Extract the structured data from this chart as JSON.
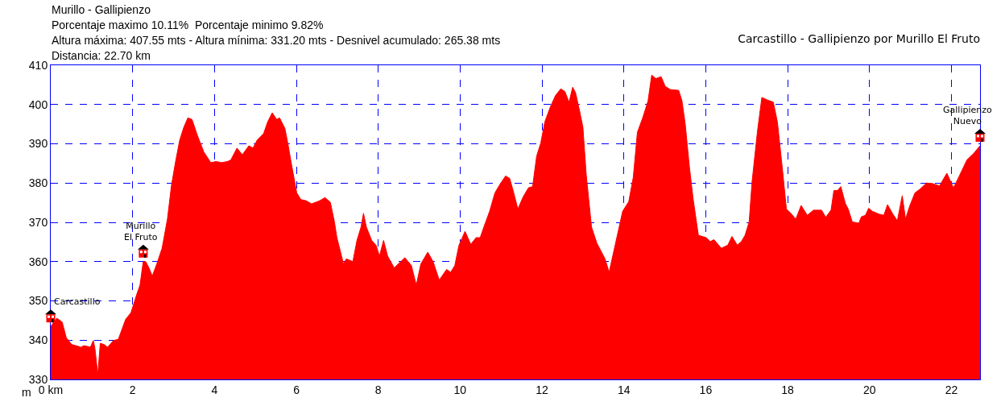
{
  "chart_data": {
    "type": "area",
    "title": "Carcastillo - Gallipienzo por Murillo El Fruto",
    "subtitle": "Murillo - Gallipienzo",
    "ylabel": "m",
    "annotations": [
      "Porcentaje maximo 10.11%  Porcentaje minimo 9.82%",
      "Altura máxima: 407.55 mts - Altura mínima: 331.20 mts - Desnivel acumulado: 265.38 mts",
      "Distancia: 22.70 km",
      {
        "text": "Carcastillo",
        "x": 0,
        "y": 343.5
      },
      {
        "text": "Murillo\nEl Fruto",
        "x": 2.26,
        "y": 360.0
      },
      {
        "text": "Gallipienzo\nNuevo",
        "x": 22.7,
        "y": 389.5
      }
    ],
    "x": [
      0,
      0.15,
      0.28,
      0.38,
      0.51,
      0.74,
      0.81,
      0.97,
      1.04,
      1.08,
      1.15,
      1.21,
      1.3,
      1.39,
      1.53,
      1.65,
      1.83,
      1.96,
      2.09,
      2.18,
      2.26,
      2.32,
      2.4,
      2.48,
      2.59,
      2.72,
      2.85,
      2.95,
      3.05,
      3.15,
      3.25,
      3.35,
      3.45,
      3.58,
      3.74,
      3.91,
      4.04,
      4.17,
      4.32,
      4.4,
      4.55,
      4.68,
      4.84,
      4.94,
      5.04,
      5.2,
      5.3,
      5.41,
      5.52,
      5.59,
      5.72,
      5.79,
      5.88,
      6.01,
      6.11,
      6.24,
      6.37,
      6.57,
      6.7,
      6.83,
      6.93,
      6.99,
      7.09,
      7.15,
      7.22,
      7.38,
      7.48,
      7.58,
      7.64,
      7.71,
      7.84,
      7.95,
      8.03,
      8.13,
      8.23,
      8.39,
      8.55,
      8.65,
      8.81,
      8.93,
      9.04,
      9.21,
      9.34,
      9.49,
      9.67,
      9.77,
      9.87,
      9.97,
      10.12,
      10.26,
      10.39,
      10.49,
      10.59,
      10.72,
      10.85,
      10.98,
      11.11,
      11.21,
      11.31,
      11.41,
      11.54,
      11.67,
      11.77,
      11.87,
      11.97,
      12.07,
      12.2,
      12.33,
      12.46,
      12.56,
      12.66,
      12.75,
      12.82,
      12.92,
      13.0,
      13.08,
      13.21,
      13.34,
      13.54,
      13.64,
      13.74,
      13.87,
      13.97,
      14.12,
      14.23,
      14.33,
      14.46,
      14.59,
      14.68,
      14.78,
      14.91,
      15.01,
      15.14,
      15.34,
      15.42,
      15.5,
      15.6,
      15.69,
      15.82,
      16.01,
      16.11,
      16.2,
      16.38,
      16.54,
      16.64,
      16.77,
      16.87,
      16.96,
      17.06,
      17.13,
      17.26,
      17.37,
      17.52,
      17.65,
      17.75,
      17.88,
      17.97,
      18.07,
      18.2,
      18.33,
      18.48,
      18.63,
      18.83,
      18.93,
      19.06,
      19.13,
      19.22,
      19.3,
      19.41,
      19.48,
      19.58,
      19.74,
      19.8,
      19.9,
      19.98,
      20.07,
      20.23,
      20.35,
      20.44,
      20.57,
      20.68,
      20.8,
      20.88,
      20.98,
      21.11,
      21.24,
      21.39,
      21.53,
      21.71,
      21.89,
      22.05,
      22.18,
      22.38,
      22.54,
      22.7
    ],
    "series": [
      {
        "color": "#ff0000",
        "values": [
          343.5,
          345.6,
          344.6,
          340.6,
          338.9,
          338.2,
          338.6,
          338.2,
          339.9,
          337.9,
          331.2,
          339.2,
          338.9,
          338.2,
          339.9,
          340.2,
          345.3,
          347.0,
          351.3,
          354.0,
          360.0,
          360.0,
          358.4,
          356.3,
          359.4,
          363.4,
          370.8,
          379.5,
          385.5,
          390.9,
          394.2,
          396.6,
          396.2,
          392.2,
          387.9,
          385.2,
          385.5,
          385.2,
          385.5,
          385.9,
          388.9,
          387.2,
          389.5,
          388.9,
          390.9,
          392.6,
          395.6,
          397.9,
          396.2,
          396.6,
          393.9,
          390.2,
          384.8,
          377.5,
          375.8,
          375.5,
          374.7,
          375.5,
          376.3,
          375.1,
          370.1,
          366.1,
          362.0,
          359.4,
          360.7,
          360.0,
          365.4,
          368.8,
          372.3,
          368.8,
          365.4,
          364.1,
          361.4,
          365.4,
          361.4,
          358.4,
          360.0,
          361.0,
          359.0,
          354.0,
          359.4,
          362.4,
          360.0,
          355.3,
          358.0,
          357.3,
          359.0,
          364.1,
          367.7,
          364.4,
          366.1,
          366.1,
          369.1,
          372.8,
          377.5,
          379.8,
          381.8,
          381.2,
          377.5,
          373.4,
          376.5,
          378.8,
          379.1,
          386.9,
          390.2,
          395.6,
          399.3,
          402.3,
          404.0,
          403.3,
          400.6,
          404.4,
          403.0,
          398.3,
          394.2,
          382.2,
          368.8,
          364.7,
          360.7,
          357.3,
          362.0,
          368.1,
          372.8,
          375.3,
          381.5,
          392.9,
          396.6,
          400.9,
          407.5,
          406.6,
          407.1,
          404.6,
          403.8,
          403.6,
          400.9,
          394.9,
          384.2,
          376.1,
          366.7,
          366.1,
          365.1,
          365.6,
          363.4,
          364.2,
          366.4,
          364.2,
          365.1,
          366.7,
          370.1,
          380.2,
          392.9,
          401.8,
          401.1,
          400.6,
          395.6,
          382.8,
          373.4,
          372.4,
          370.8,
          374.3,
          371.8,
          373.1,
          373.1,
          371.3,
          373.1,
          378.1,
          378.1,
          379.1,
          374.8,
          373.4,
          370.1,
          369.8,
          371.4,
          371.8,
          373.6,
          372.8,
          372.1,
          371.8,
          374.5,
          372.1,
          370.4,
          376.8,
          370.8,
          374.1,
          377.5,
          378.5,
          380.0,
          379.9,
          379.3,
          382.5,
          378.8,
          381.5,
          385.9,
          387.5,
          389.5
        ]
      }
    ],
    "xlim": [
      0,
      22.7
    ],
    "xticks": [
      {
        "value": 0,
        "label": "0 km"
      },
      2,
      4,
      6,
      8,
      10,
      12,
      14,
      16,
      18,
      20,
      22
    ],
    "ylim": [
      330,
      410
    ],
    "yticks": [
      330,
      340,
      350,
      360,
      370,
      380,
      390,
      400,
      410
    ],
    "grid": true
  }
}
